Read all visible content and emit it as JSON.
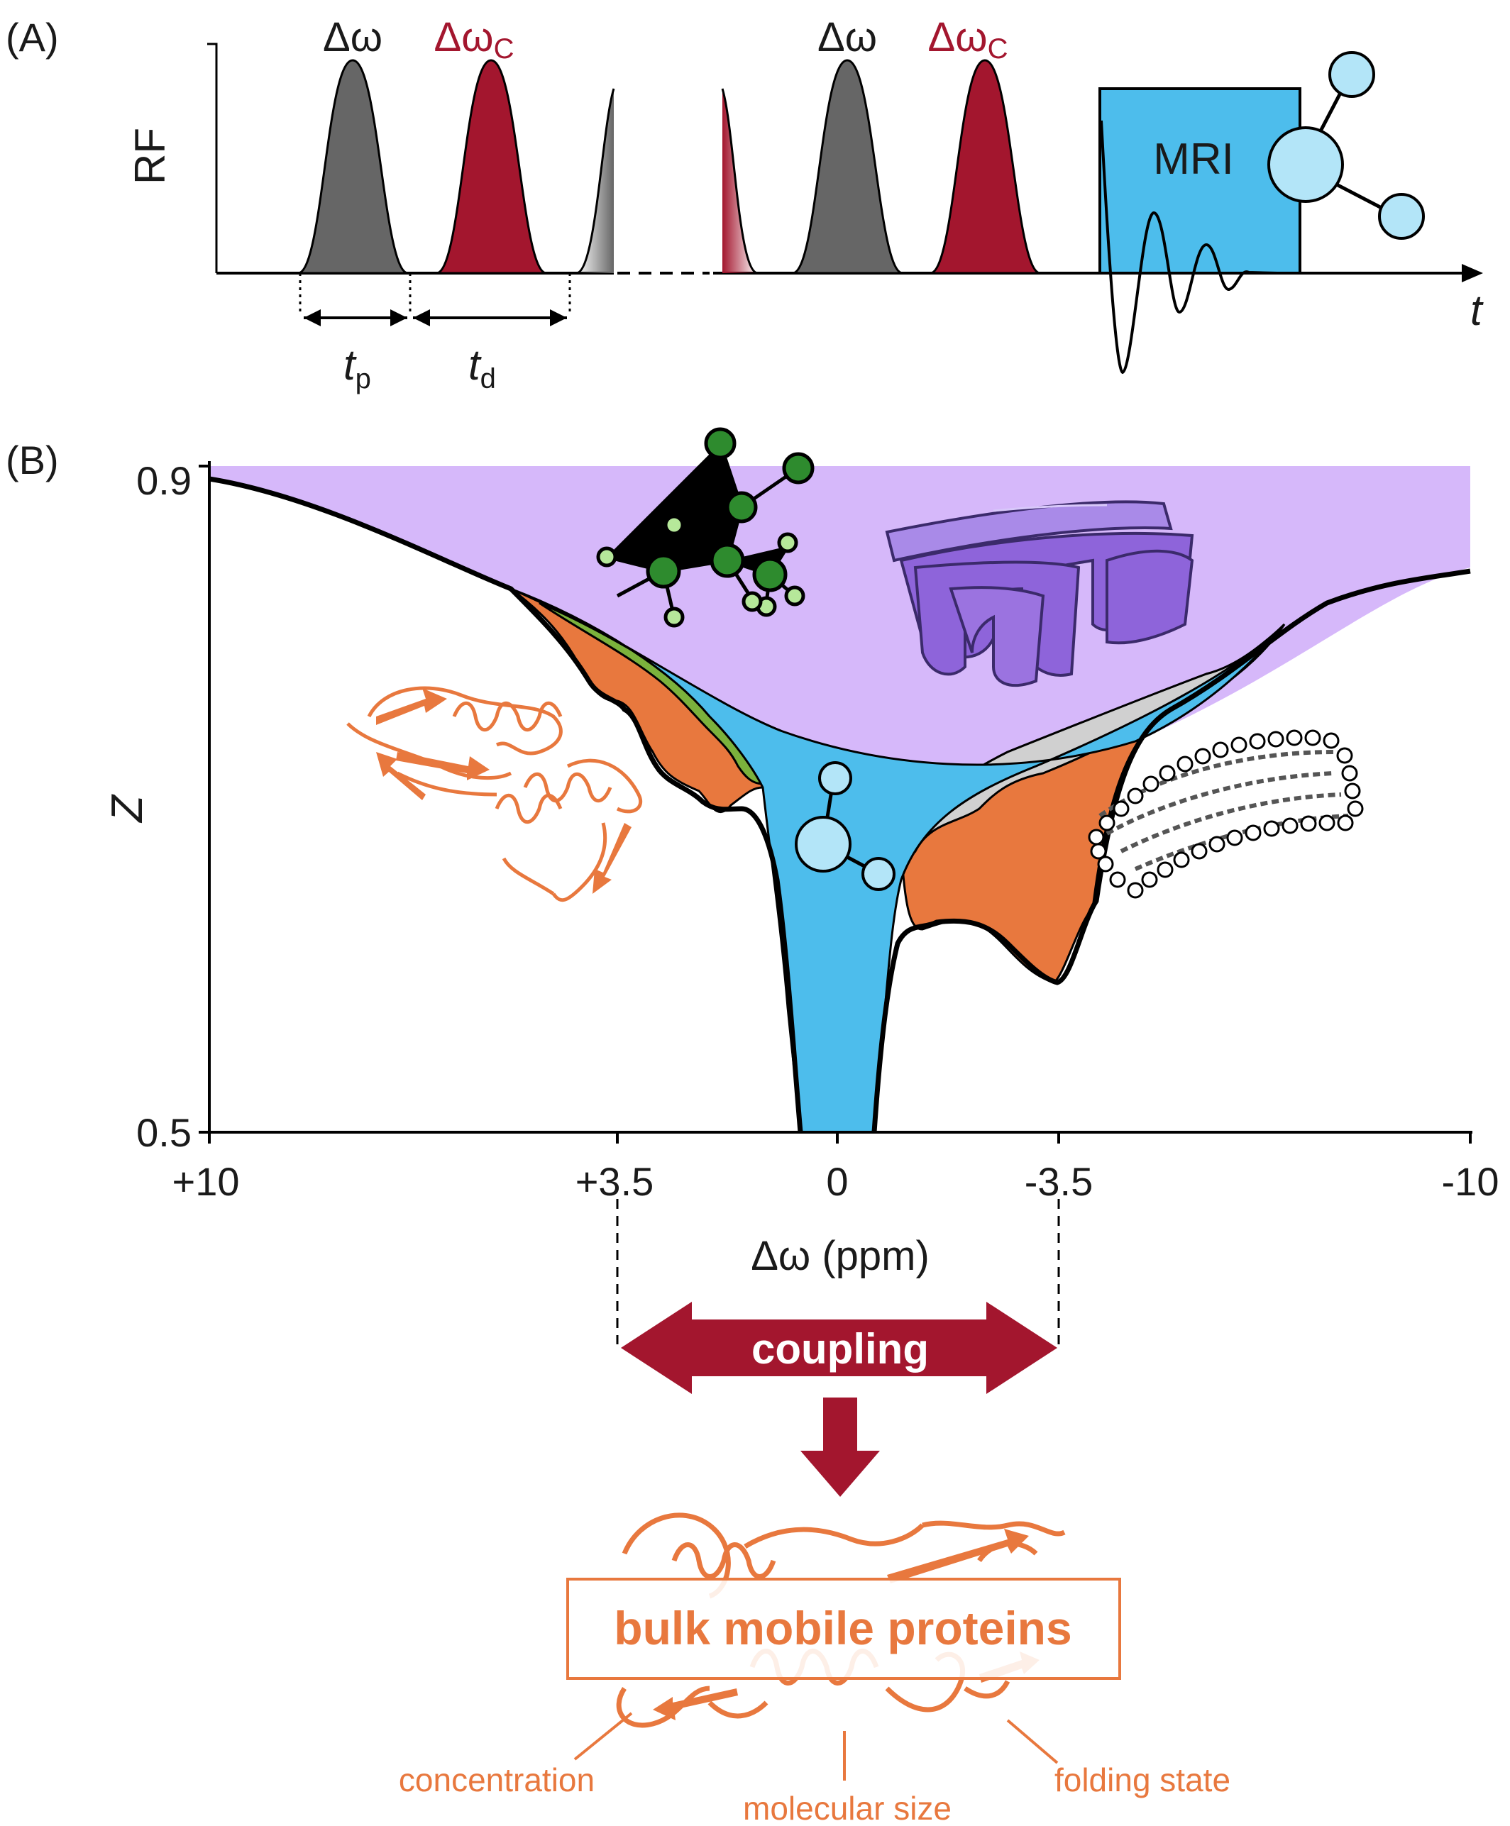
{
  "panel_a": {
    "label": "(A)",
    "y_label": "RF",
    "x_label": "t",
    "pulse_label": "Δω",
    "pulse_c_label_base": "Δω",
    "pulse_c_label_sub": "C",
    "tp_label_base": "t",
    "tp_label_sub": "p",
    "td_label_base": "t",
    "td_label_sub": "d",
    "mri_label": "MRI"
  },
  "panel_b": {
    "label": "(B)",
    "y_label": "Z",
    "y_ticks": [
      "0.9",
      "0.5"
    ],
    "x_ticks": [
      "+10",
      "+3.5",
      "0",
      "-3.5",
      "-10"
    ],
    "x_label": "Δω (ppm)"
  },
  "coupling_label": "coupling",
  "proteins_box_label": "bulk mobile proteins",
  "annotations": [
    "concentration",
    "molecular size",
    "folding state"
  ],
  "colors": {
    "pulse_grey": "#666666",
    "pulse_red": "#a3162e",
    "mri_blue": "#4dbdec",
    "water_blue": "#4dbdec",
    "mt_purple": "#d6b8fa",
    "noe_orange": "#e8783e",
    "amide_green": "#7bb23c",
    "lipid_grey": "#d0d0d0",
    "protein_orange": "#e8783e"
  },
  "chart_data": {
    "type": "area",
    "xlabel": "Δω (ppm)",
    "ylabel": "Z",
    "xlim": [
      10,
      -10
    ],
    "ylim": [
      0.5,
      0.9
    ],
    "x_ticks": [
      10,
      3.5,
      0,
      -3.5,
      -10
    ],
    "y_ticks": [
      0.9,
      0.5
    ]
  }
}
